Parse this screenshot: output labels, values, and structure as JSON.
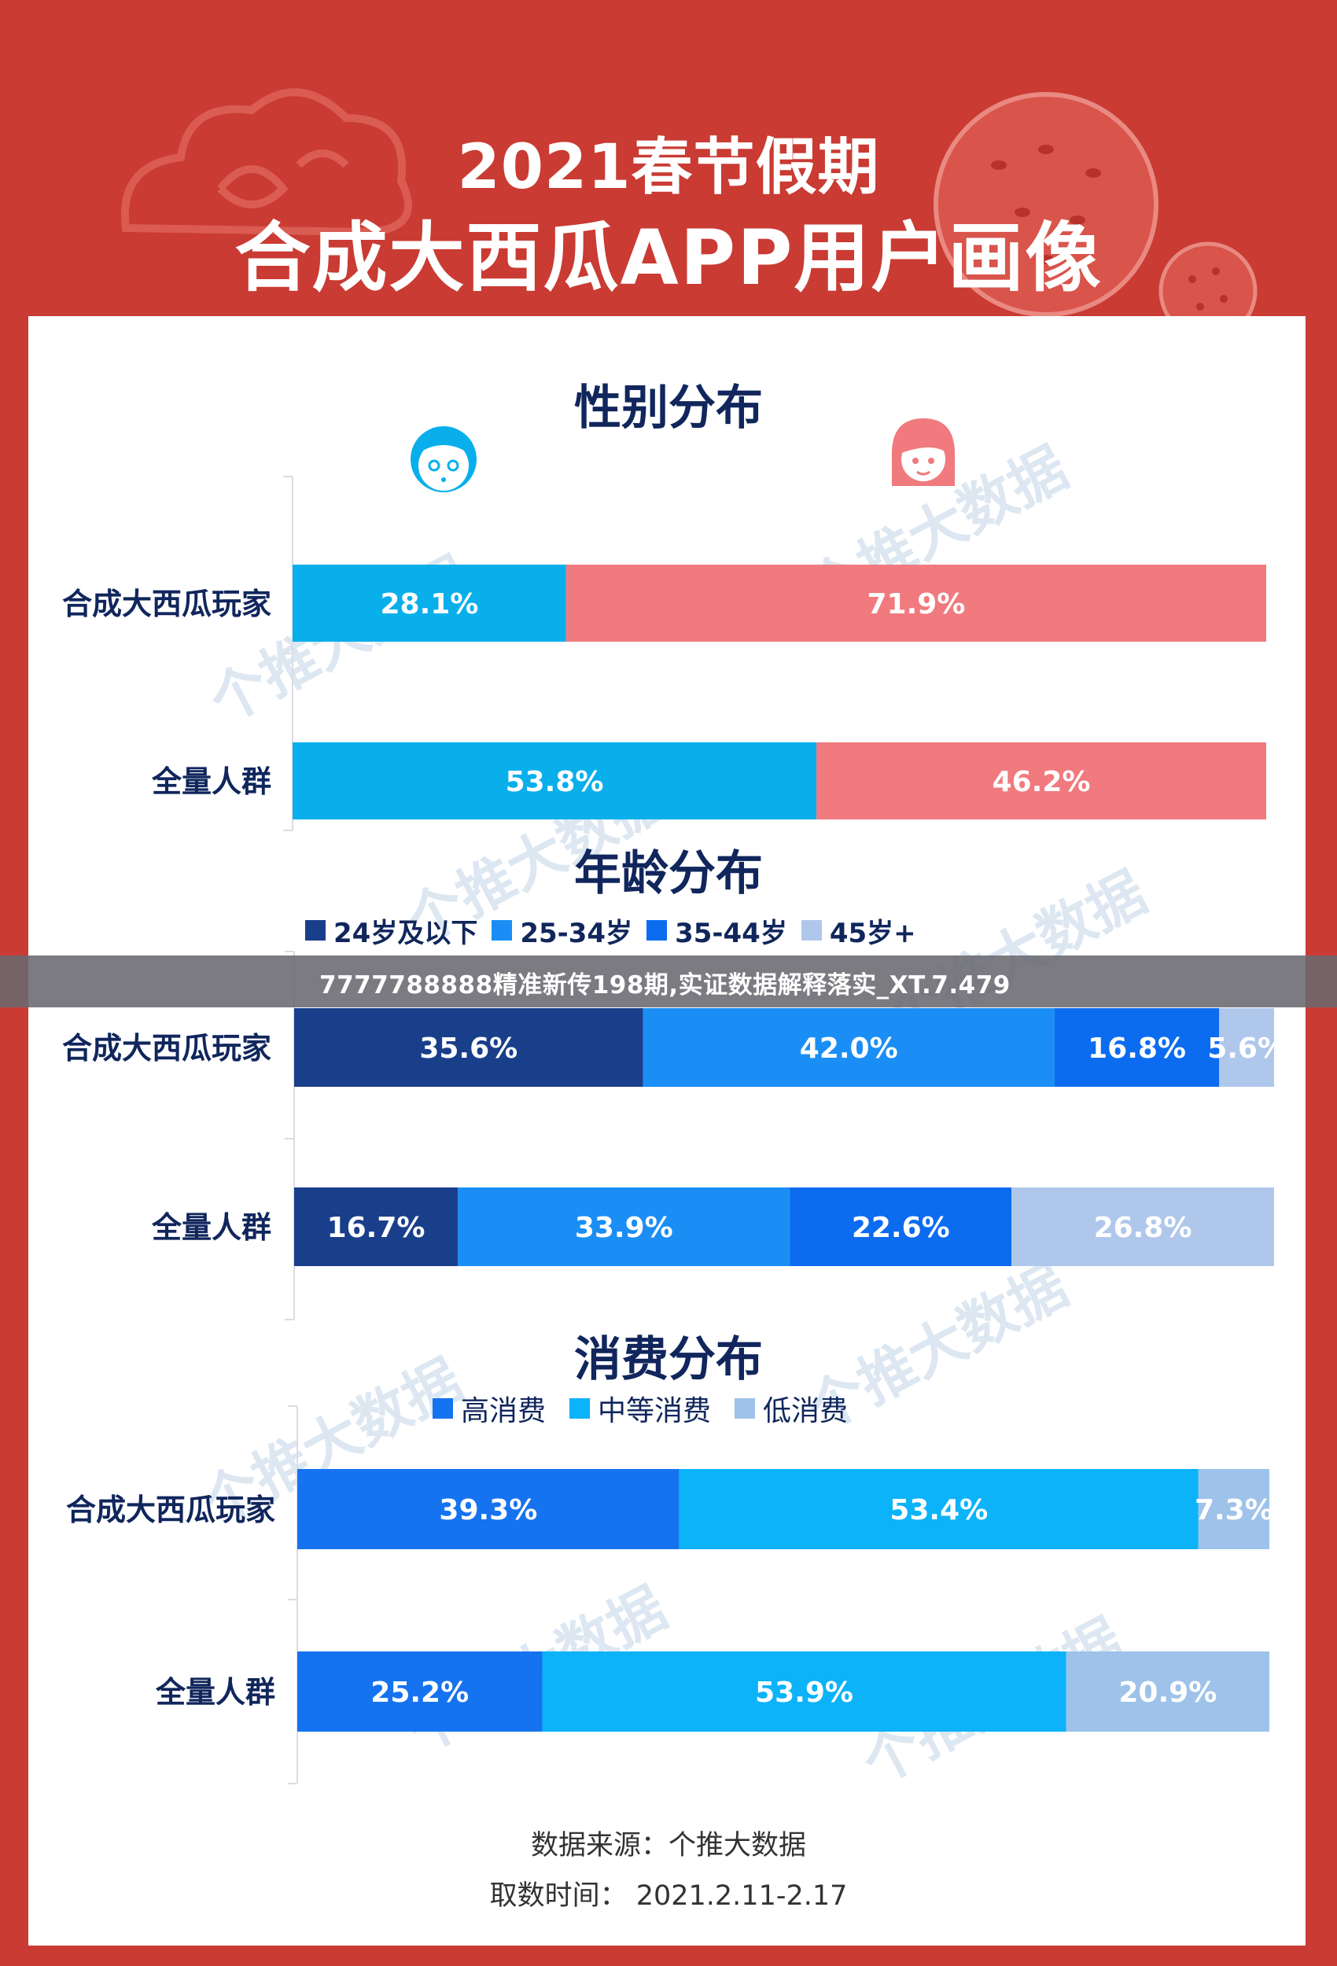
{
  "header": {
    "title_line1": "2021春节假期",
    "title_line2": "合成大西瓜APP用户画像"
  },
  "watermark_text": "个推大数据",
  "overlay_banner": "7777788888精准新传198期,实证数据解释落实_XT.7.479",
  "colors": {
    "red": "#c93b33",
    "male": "#08afeb",
    "female": "#f07a7e",
    "age1": "#1a3f8a",
    "age2": "#1a8ef5",
    "age3": "#0c6cf0",
    "age4": "#b0c7ec",
    "high": "#1673f0",
    "mid": "#0cb3f8",
    "low": "#9ec2e9"
  },
  "chart_data": [
    {
      "type": "bar",
      "stacked": true,
      "orientation": "horizontal",
      "title": "性别分布",
      "icons": [
        "boy-face-icon",
        "girl-face-icon"
      ],
      "categories": [
        "合成大西瓜玩家",
        "全量人群"
      ],
      "series": [
        {
          "name": "",
          "color_key": "male",
          "values": [
            28.1,
            53.8
          ]
        },
        {
          "name": "",
          "color_key": "female",
          "values": [
            71.9,
            46.2
          ]
        }
      ],
      "data_labels": [
        [
          "28.1%",
          "53.8%"
        ],
        [
          "71.9%",
          "46.2%"
        ]
      ]
    },
    {
      "type": "bar",
      "stacked": true,
      "orientation": "horizontal",
      "title": "年龄分布",
      "legend": "top",
      "categories": [
        "合成大西瓜玩家",
        "全量人群"
      ],
      "series": [
        {
          "name": "24岁及以下",
          "color_key": "age1",
          "values": [
            35.6,
            16.7
          ]
        },
        {
          "name": "25-34岁",
          "color_key": "age2",
          "values": [
            42.0,
            33.9
          ]
        },
        {
          "name": "35-44岁",
          "color_key": "age3",
          "values": [
            16.8,
            22.6
          ]
        },
        {
          "name": "45岁+",
          "color_key": "age4",
          "values": [
            5.6,
            26.8
          ]
        }
      ],
      "data_labels": [
        [
          "35.6%",
          "16.7%"
        ],
        [
          "42.0%",
          "33.9%"
        ],
        [
          "16.8%",
          "22.6%"
        ],
        [
          "5.6%",
          "26.8%"
        ]
      ]
    },
    {
      "type": "bar",
      "stacked": true,
      "orientation": "horizontal",
      "title": "消费分布",
      "legend": "top",
      "categories": [
        "合成大西瓜玩家",
        "全量人群"
      ],
      "series": [
        {
          "name": "高消费",
          "color_key": "high",
          "values": [
            39.3,
            25.2
          ]
        },
        {
          "name": "中等消费",
          "color_key": "mid",
          "values": [
            53.4,
            53.9
          ]
        },
        {
          "name": "低消费",
          "color_key": "low",
          "values": [
            7.3,
            20.9
          ]
        }
      ],
      "data_labels": [
        [
          "39.3%",
          "25.2%"
        ],
        [
          "53.4%",
          "53.9%"
        ],
        [
          "7.3%",
          "20.9%"
        ]
      ]
    }
  ],
  "footer": {
    "source": "数据来源：个推大数据",
    "period": "取数时间：  2021.2.11-2.17"
  }
}
